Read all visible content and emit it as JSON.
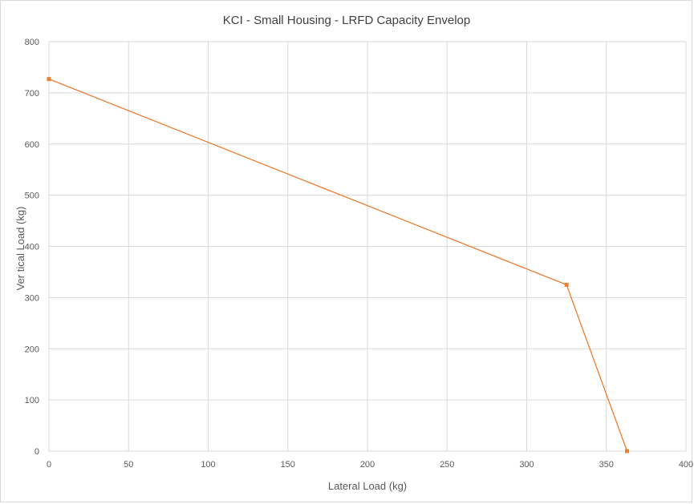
{
  "chart_data": {
    "type": "scatter",
    "title": "KCI - Small Housing - LRFD Capacity Envelop",
    "xlabel": "Lateral Load (kg)",
    "ylabel": "Ver tical Load (kg)",
    "xlim": [
      0,
      400
    ],
    "ylim": [
      0,
      800
    ],
    "x_ticks": [
      "0",
      "50",
      "100",
      "150",
      "200",
      "250",
      "300",
      "350",
      "400"
    ],
    "y_ticks": [
      "0",
      "100",
      "200",
      "300",
      "400",
      "500",
      "600",
      "700",
      "800"
    ],
    "grid": true,
    "legend": "none",
    "series": [
      {
        "color": "#ed7d31",
        "marker": "square",
        "line": "straight",
        "points": [
          {
            "x": 0,
            "y": 727
          },
          {
            "x": 325,
            "y": 325
          },
          {
            "x": 363,
            "y": 0
          }
        ]
      }
    ]
  }
}
